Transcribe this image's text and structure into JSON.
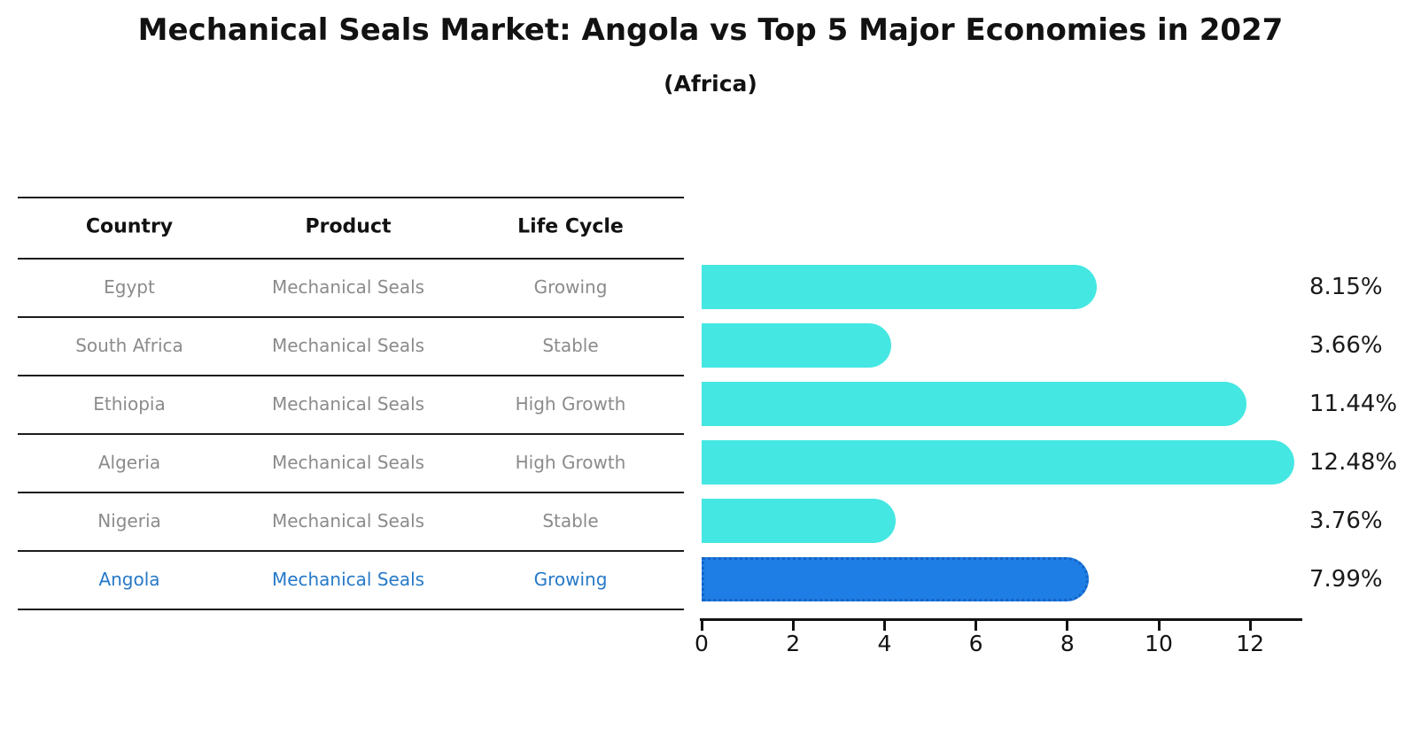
{
  "title": "Mechanical Seals Market: Angola vs Top 5 Major Economies in 2027",
  "subtitle": "(Africa)",
  "table": {
    "headers": [
      "Country",
      "Product",
      "Life Cycle"
    ],
    "rows": [
      {
        "country": "Egypt",
        "product": "Mechanical Seals",
        "life_cycle": "Growing",
        "highlight": false
      },
      {
        "country": "South Africa",
        "product": "Mechanical Seals",
        "life_cycle": "Stable",
        "highlight": false
      },
      {
        "country": "Ethiopia",
        "product": "Mechanical Seals",
        "life_cycle": "High Growth",
        "highlight": false
      },
      {
        "country": "Algeria",
        "product": "Mechanical Seals",
        "life_cycle": "High Growth",
        "highlight": false
      },
      {
        "country": "Nigeria",
        "product": "Mechanical Seals",
        "life_cycle": "Stable",
        "highlight": false
      },
      {
        "country": "Angola",
        "product": "Mechanical Seals",
        "life_cycle": "Growing",
        "highlight": true
      }
    ]
  },
  "chart_data": {
    "type": "bar",
    "orientation": "horizontal",
    "title": "Mechanical Seals Market: Angola vs Top 5 Major Economies in 2027",
    "subtitle": "(Africa)",
    "categories": [
      "Egypt",
      "South Africa",
      "Ethiopia",
      "Algeria",
      "Nigeria",
      "Angola"
    ],
    "values": [
      8.15,
      3.66,
      11.44,
      12.48,
      3.76,
      7.99
    ],
    "value_labels": [
      "8.15%",
      "3.66%",
      "11.44%",
      "12.48%",
      "3.76%",
      "7.99%"
    ],
    "xticks": [
      0,
      2,
      4,
      6,
      8,
      10,
      12
    ],
    "xlim": [
      0,
      13.2
    ],
    "grid": false,
    "legend": "none",
    "highlight_index": 5
  },
  "colors": {
    "bar": "#45e7e2",
    "highlight_bar": "#1e7ee5",
    "highlight_bar_border": "#1563c5",
    "highlight_text": "#2679c8",
    "header_text": "#121212",
    "row_text": "#8b8b8b",
    "value_text": "#1a1a1a",
    "line": "#1c1c1c"
  }
}
